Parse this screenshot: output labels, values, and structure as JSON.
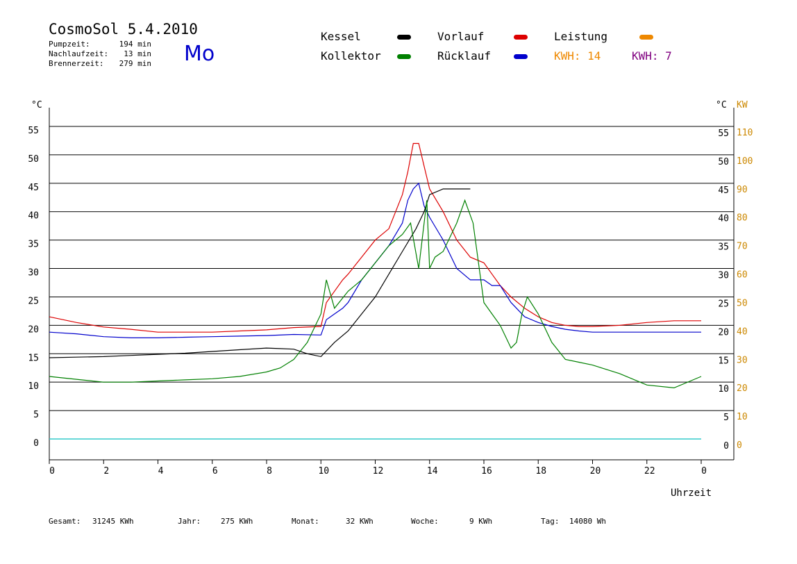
{
  "header": {
    "title": "CosmoSol 5.4.2010",
    "weekday": "Mo",
    "stats": [
      {
        "label": "Pumpzeit:",
        "value": "194 min"
      },
      {
        "label": "Nachlaufzeit:",
        "value": "13 min"
      },
      {
        "label": "Brennerzeit:",
        "value": "279 min"
      }
    ]
  },
  "legend": {
    "kessel": "Kessel",
    "kollektor": "Kollektor",
    "vorlauf": "Vorlauf",
    "ruecklauf": "Rücklauf",
    "leistung": "Leistung",
    "kwh_orange": "KWH: 14",
    "kwh_purple": "KWH: 7"
  },
  "colors": {
    "kessel": "#000000",
    "kollektor": "#008000",
    "vorlauf": "#dd0000",
    "ruecklauf": "#0000cc",
    "leistung": "#ee8800",
    "kwh_purple": "#800080",
    "pump": "#33cccc",
    "right_axis": "#cc8800"
  },
  "footer": {
    "gesamt_label": "Gesamt:",
    "gesamt": "31245 KWh",
    "jahr_label": "Jahr:",
    "jahr": "275 KWh",
    "monat_label": "Monat:",
    "monat": "32 KWh",
    "woche_label": "Woche:",
    "woche": "9 KWh",
    "tag_label": "Tag:",
    "tag": "14080 Wh"
  },
  "chart_data": {
    "type": "line",
    "title": "CosmoSol 5.4.2010",
    "xlabel": "Uhrzeit",
    "ylabel_left": "°C",
    "ylabel_right_1": "°C",
    "ylabel_right_2": "KW",
    "xlim": [
      0,
      24
    ],
    "ylim": [
      0,
      55
    ],
    "ylim_kw": [
      0,
      110
    ],
    "grid": true,
    "x_ticks": [
      "0",
      "2",
      "4",
      "6",
      "8",
      "10",
      "12",
      "14",
      "16",
      "18",
      "20",
      "22",
      "0"
    ],
    "y_ticks": [
      "0",
      "5",
      "10",
      "15",
      "20",
      "25",
      "30",
      "35",
      "40",
      "45",
      "50",
      "55"
    ],
    "y_ticks_kw": [
      "0",
      "10",
      "20",
      "30",
      "40",
      "50",
      "60",
      "70",
      "80",
      "90",
      "100",
      "110"
    ],
    "series": [
      {
        "name": "Vorlauf",
        "x": [
          0,
          1,
          2,
          3,
          4,
          5,
          6,
          7,
          8,
          9,
          10,
          10.2,
          10.5,
          10.8,
          11,
          11.5,
          12,
          12.5,
          13,
          13.2,
          13.4,
          13.6,
          13.8,
          14,
          14.5,
          15,
          15.5,
          16,
          16.3,
          16.6,
          17,
          17.5,
          18,
          18.5,
          19,
          19.5,
          20,
          21,
          22,
          23,
          24
        ],
        "y": [
          21.5,
          20.5,
          19.7,
          19.3,
          18.8,
          18.8,
          18.8,
          19.0,
          19.2,
          19.6,
          19.8,
          24,
          26,
          28,
          29,
          32,
          35,
          37,
          43,
          47,
          52,
          52,
          48,
          44,
          40,
          35,
          32,
          31,
          29,
          27,
          25,
          23,
          21.5,
          20.5,
          20,
          19.8,
          19.8,
          20,
          20.5,
          20.8,
          20.8
        ]
      },
      {
        "name": "Rücklauf",
        "x": [
          0,
          1,
          2,
          3,
          4,
          5,
          6,
          7,
          8,
          9,
          10,
          10.2,
          10.5,
          10.8,
          11,
          11.5,
          12,
          12.5,
          13,
          13.2,
          13.4,
          13.6,
          13.8,
          14,
          14.5,
          15,
          15.5,
          16,
          16.3,
          16.6,
          17,
          17.5,
          18,
          18.5,
          19,
          19.5,
          20,
          21,
          22,
          23,
          24
        ],
        "y": [
          18.8,
          18.5,
          18.0,
          17.8,
          17.8,
          17.9,
          18.0,
          18.1,
          18.2,
          18.4,
          18.3,
          21,
          22,
          23,
          24,
          28,
          31,
          34,
          38,
          42,
          44,
          45,
          41,
          39,
          35,
          30,
          28,
          28,
          27,
          27,
          24,
          21.5,
          20.5,
          19.8,
          19.3,
          19.0,
          18.8,
          18.8,
          18.8,
          18.8,
          18.8
        ]
      },
      {
        "name": "Kessel",
        "x": [
          0,
          1,
          2,
          3,
          4,
          5,
          6,
          7,
          8,
          8.5,
          9,
          9.5,
          10,
          10.5,
          11,
          11.5,
          12,
          12.5,
          13,
          13.5,
          13.8,
          14,
          14.5,
          15,
          15.5
        ],
        "y": [
          14.3,
          14.4,
          14.5,
          14.7,
          14.9,
          15.1,
          15.4,
          15.7,
          16.0,
          15.9,
          15.8,
          15.0,
          14.5,
          17,
          19,
          22,
          25,
          29,
          33,
          37,
          40,
          43,
          44,
          44,
          44
        ]
      },
      {
        "name": "Kollektor",
        "x": [
          0,
          1,
          2,
          3,
          4,
          5,
          6,
          7,
          8,
          8.5,
          9,
          9.5,
          10,
          10.2,
          10.5,
          11,
          11.5,
          12,
          12.5,
          13,
          13.3,
          13.6,
          13.9,
          14,
          14.2,
          14.5,
          15,
          15.3,
          15.6,
          16,
          16.3,
          16.6,
          17,
          17.2,
          17.4,
          17.6,
          18,
          18.5,
          19,
          19.5,
          20,
          21,
          22,
          23,
          24
        ],
        "y": [
          11,
          10.5,
          10,
          10,
          10.2,
          10.4,
          10.6,
          11,
          11.8,
          12.5,
          14,
          17,
          22,
          28,
          23,
          26,
          28,
          31,
          34,
          36,
          38,
          30,
          42,
          30,
          32,
          33,
          38,
          42,
          38,
          24,
          22,
          20,
          16,
          17,
          22,
          25,
          22,
          17,
          14,
          13.5,
          13,
          11.5,
          9.5,
          9,
          11
        ]
      }
    ],
    "legend_position": "top"
  }
}
